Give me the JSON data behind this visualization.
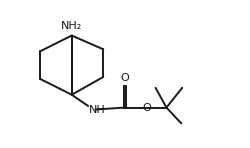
{
  "bg_color": "#ffffff",
  "line_color": "#1a1a1a",
  "line_width": 1.4,
  "font_size": 7.5,
  "NH2_label": "NH₂",
  "NH_label": "NH",
  "O_double_label": "O",
  "O_single_label": "O",
  "xlim": [
    -0.5,
    10.5
  ],
  "ylim": [
    1.5,
    9.0
  ]
}
